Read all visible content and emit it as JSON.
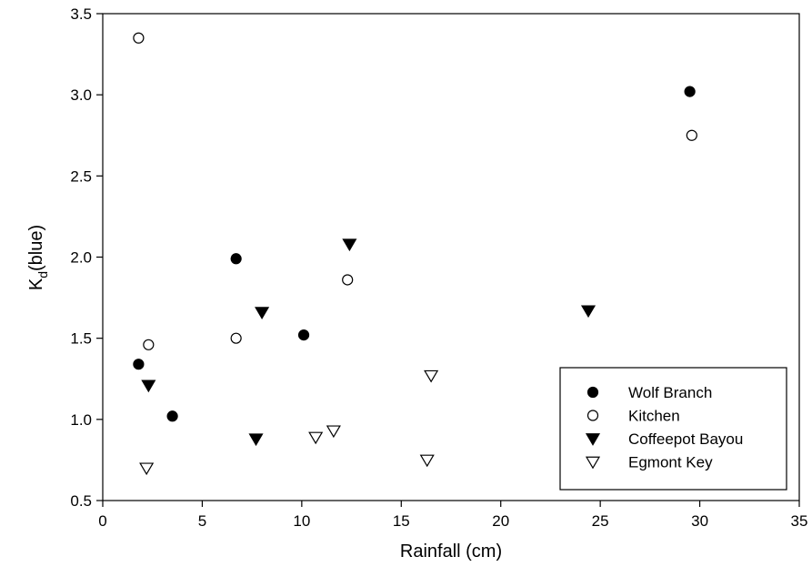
{
  "chart_data": {
    "type": "scatter",
    "title": "",
    "xlabel": "Rainfall (cm)",
    "ylabel": {
      "main": "K",
      "subscript": "d",
      "suffix": "(blue)"
    },
    "xlim": [
      0,
      35
    ],
    "ylim": [
      0.5,
      3.5
    ],
    "x_ticks": [
      0,
      5,
      10,
      15,
      20,
      25,
      30,
      35
    ],
    "y_ticks": [
      0.5,
      1.0,
      1.5,
      2.0,
      2.5,
      3.0,
      3.5
    ],
    "x_tick_labels": [
      "0",
      "5",
      "10",
      "15",
      "20",
      "25",
      "30",
      "35"
    ],
    "y_tick_labels": [
      "0.5",
      "1.0",
      "1.5",
      "2.0",
      "2.5",
      "3.0",
      "3.5"
    ],
    "grid": false,
    "legend_position": "bottom-right",
    "series": [
      {
        "name": "Wolf Branch",
        "marker": "circle-filled",
        "points": [
          [
            1.8,
            1.34
          ],
          [
            3.5,
            1.02
          ],
          [
            6.7,
            1.99
          ],
          [
            10.1,
            1.52
          ],
          [
            29.5,
            3.02
          ]
        ]
      },
      {
        "name": "Kitchen",
        "marker": "circle-open",
        "points": [
          [
            1.8,
            3.35
          ],
          [
            2.3,
            1.46
          ],
          [
            6.7,
            1.5
          ],
          [
            12.3,
            1.86
          ],
          [
            29.6,
            2.75
          ]
        ]
      },
      {
        "name": "Coffeepot Bayou",
        "marker": "triangle-down-filled",
        "points": [
          [
            2.3,
            1.21
          ],
          [
            7.7,
            0.88
          ],
          [
            8.0,
            1.66
          ],
          [
            12.4,
            2.08
          ],
          [
            24.4,
            1.67
          ]
        ]
      },
      {
        "name": "Egmont Key",
        "marker": "triangle-down-open",
        "points": [
          [
            2.2,
            0.7
          ],
          [
            10.7,
            0.89
          ],
          [
            11.6,
            0.93
          ],
          [
            16.3,
            0.75
          ],
          [
            16.5,
            1.27
          ]
        ]
      }
    ]
  }
}
